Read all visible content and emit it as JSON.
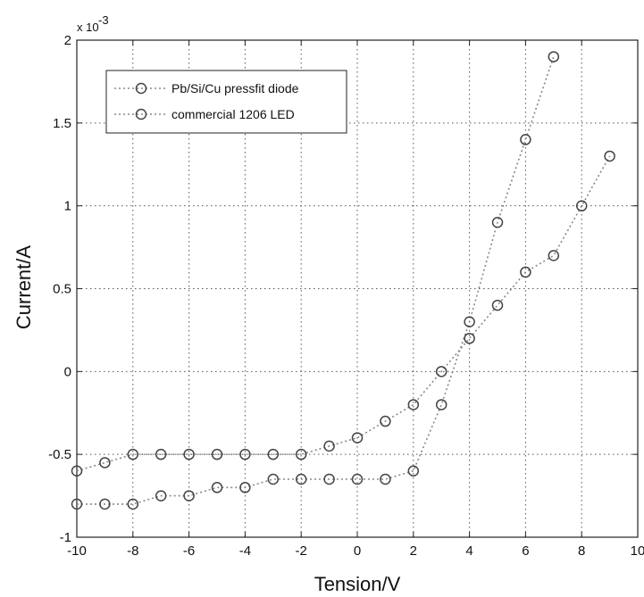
{
  "chart_data": {
    "type": "line",
    "xlabel": "Tension/V",
    "ylabel": "Current/A",
    "y_multiplier": "x 10",
    "y_multiplier_exp": "-3",
    "xlim": [
      -10,
      10
    ],
    "ylim": [
      -1,
      2
    ],
    "x_ticks": [
      "-10",
      "-8",
      "-6",
      "-4",
      "-2",
      "0",
      "2",
      "4",
      "6",
      "8",
      "10"
    ],
    "y_ticks": [
      "-1",
      "-0.5",
      "0",
      "0.5",
      "1",
      "1.5",
      "2"
    ],
    "grid": true,
    "legend_position": "top-left",
    "series": [
      {
        "name": "Pb/Si/Cu pressfit diode",
        "marker": "circle",
        "line_style": "dotted",
        "x": [
          -10,
          -9,
          -8,
          -7,
          -6,
          -5,
          -4,
          -3,
          -2,
          -1,
          0,
          1,
          2,
          3,
          4,
          5,
          6,
          7
        ],
        "y": [
          -0.8,
          -0.8,
          -0.8,
          -0.75,
          -0.75,
          -0.7,
          -0.7,
          -0.65,
          -0.65,
          -0.65,
          -0.65,
          -0.65,
          -0.6,
          -0.2,
          0.3,
          0.9,
          1.4,
          1.9
        ]
      },
      {
        "name": "commercial 1206 LED",
        "marker": "circle",
        "line_style": "dotted",
        "x": [
          -10,
          -9,
          -8,
          -7,
          -6,
          -5,
          -4,
          -3,
          -2,
          -1,
          0,
          1,
          2,
          3,
          4,
          5,
          6,
          7,
          8,
          9
        ],
        "y": [
          -0.6,
          -0.55,
          -0.5,
          -0.5,
          -0.5,
          -0.5,
          -0.5,
          -0.5,
          -0.5,
          -0.45,
          -0.4,
          -0.3,
          -0.2,
          0.0,
          0.2,
          0.4,
          0.6,
          0.7,
          1.0,
          1.3
        ]
      }
    ]
  }
}
